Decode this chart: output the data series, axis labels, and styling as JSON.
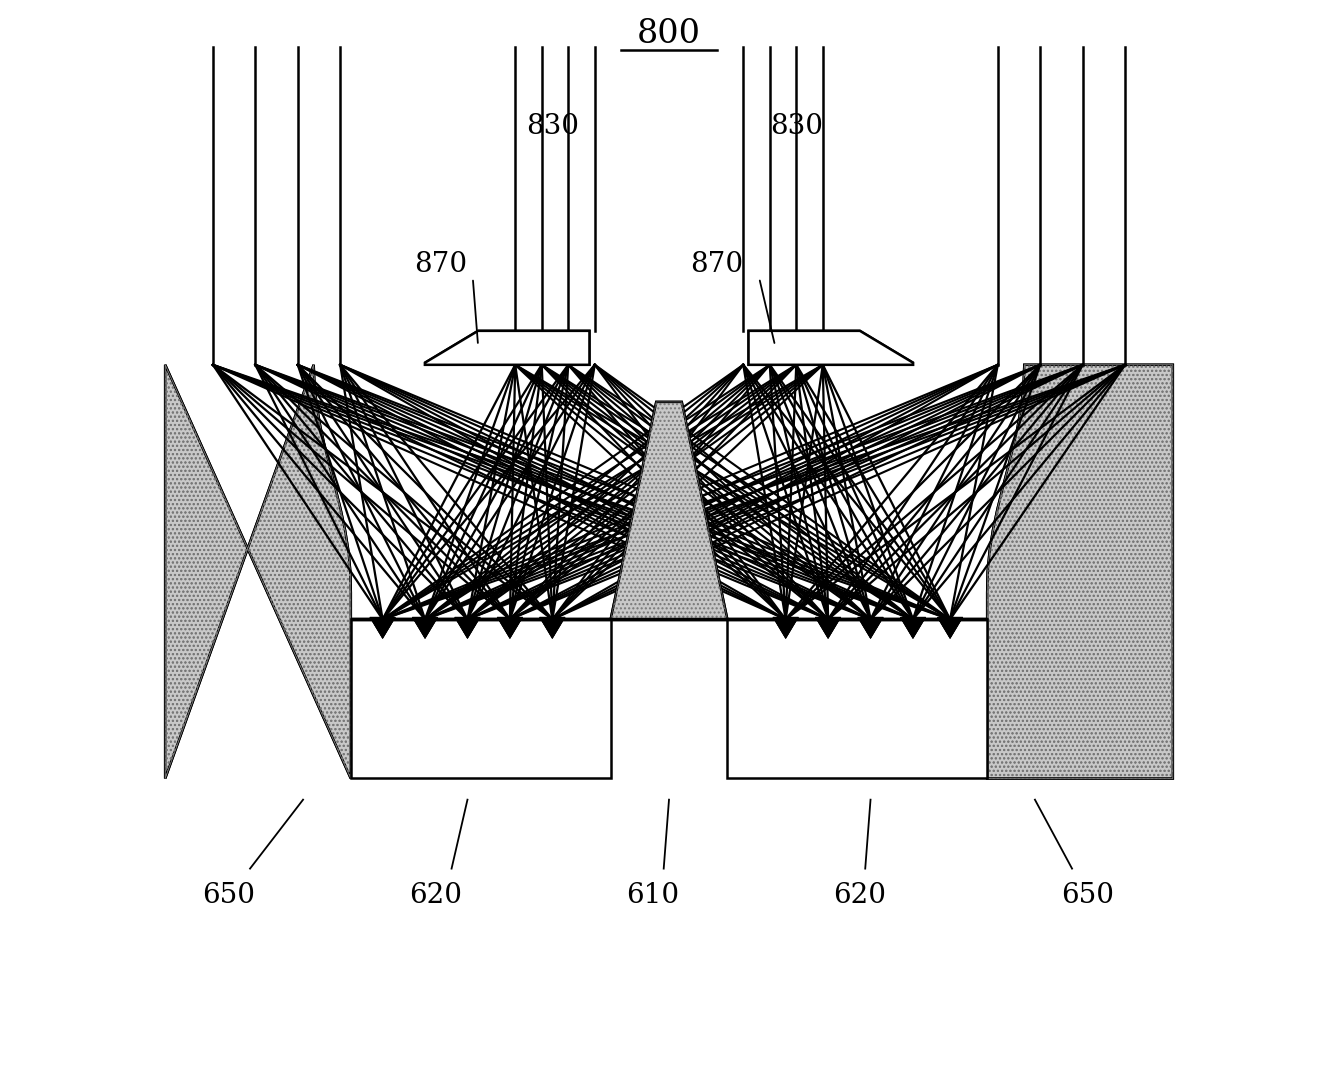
{
  "bg_color": "#ffffff",
  "line_color": "#000000",
  "hatch_color": "#888888",
  "hatch_fill": "#c8c8c8",
  "fig_width": 13.38,
  "fig_height": 10.69,
  "title": "800",
  "label_830_left": "830",
  "label_830_right": "830",
  "label_870_left": "870",
  "label_870_right": "870",
  "label_650_left": "650",
  "label_620_left": "620",
  "label_610": "610",
  "label_620_right": "620",
  "label_650_right": "650",
  "lw_main": 1.8,
  "lw_thick": 2.5,
  "label_fs": 20
}
